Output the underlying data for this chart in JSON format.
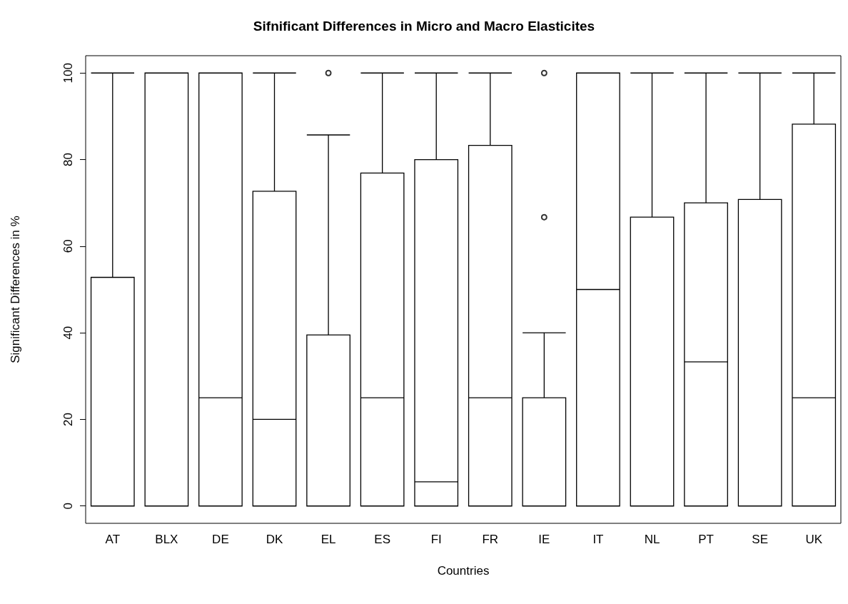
{
  "chart_data": {
    "type": "box",
    "title": "Sifnificant Differences in Micro and Macro Elasticites",
    "xlabel": "Countries",
    "ylabel": "Significant Differences in %",
    "categories": [
      "AT",
      "BLX",
      "DE",
      "DK",
      "EL",
      "ES",
      "FI",
      "FR",
      "IE",
      "IT",
      "NL",
      "PT",
      "SE",
      "UK"
    ],
    "boxes": [
      {
        "low": 0,
        "q1": 0,
        "median": 0,
        "q3": 52.8,
        "high": 100
      },
      {
        "low": 0,
        "q1": 0,
        "median": 0,
        "q3": 100,
        "high": 100
      },
      {
        "low": 0,
        "q1": 0,
        "median": 25,
        "q3": 100,
        "high": 100
      },
      {
        "low": 0,
        "q1": 0,
        "median": 20,
        "q3": 72.7,
        "high": 100
      },
      {
        "low": 0,
        "q1": 0,
        "median": 0,
        "q3": 39.5,
        "high": 85.7,
        "outliers": [
          100
        ]
      },
      {
        "low": 0,
        "q1": 0,
        "median": 25,
        "q3": 76.9,
        "high": 100
      },
      {
        "low": 0,
        "q1": 0,
        "median": 5.6,
        "q3": 80,
        "high": 100
      },
      {
        "low": 0,
        "q1": 0,
        "median": 25,
        "q3": 83.3,
        "high": 100
      },
      {
        "low": 0,
        "q1": 0,
        "median": 0,
        "q3": 25,
        "high": 40,
        "outliers": [
          66.7,
          100
        ]
      },
      {
        "low": 0,
        "q1": 0,
        "median": 50,
        "q3": 100,
        "high": 100
      },
      {
        "low": 0,
        "q1": 0,
        "median": 0,
        "q3": 66.7,
        "high": 100
      },
      {
        "low": 0,
        "q1": 0,
        "median": 33.3,
        "q3": 70,
        "high": 100
      },
      {
        "low": 0,
        "q1": 0,
        "median": 0,
        "q3": 70.8,
        "high": 100
      },
      {
        "low": 0,
        "q1": 0,
        "median": 25,
        "q3": 88.2,
        "high": 100
      }
    ],
    "color": "#000000",
    "ylim": [
      -4,
      104
    ],
    "yticks": [
      0,
      20,
      40,
      60,
      80,
      100
    ],
    "grid": false
  }
}
